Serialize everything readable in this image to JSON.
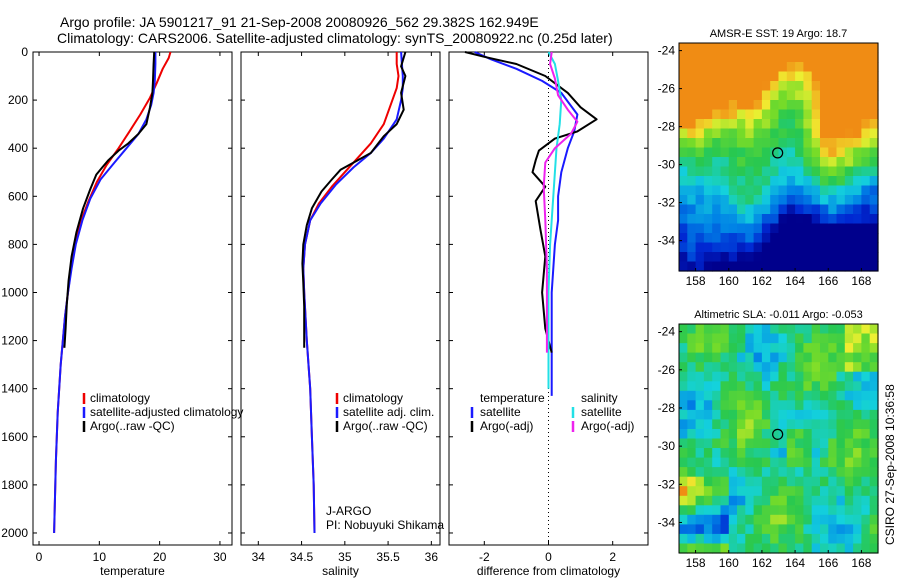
{
  "header": {
    "line1": "Argo profile: JA 5901217_91 21-Sep-2008 20080926_562 29.382S 162.949E",
    "line2": "Climatology: CARS2006. Satellite-adjusted climatology: synTS_20080922.nc (0.25d later)"
  },
  "side_label": "CSIRO 27-Sep-2008 10:36:58",
  "colors": {
    "climatology": "#ee0000",
    "satellite": "#1a1aff",
    "argo": "#000000",
    "sal_satellite": "#22e0e6",
    "sal_argo": "#ee22ee"
  },
  "chart_data": [
    {
      "id": "temperature",
      "type": "line",
      "xlabel": "temperature",
      "ylabel": "",
      "xlim": [
        -1,
        32
      ],
      "ylim": [
        2050,
        0
      ],
      "xticks": [
        0,
        10,
        20,
        30
      ],
      "yticks": [
        0,
        200,
        400,
        600,
        800,
        1000,
        1200,
        1400,
        1600,
        1800,
        2000
      ],
      "legend": [
        {
          "label": "climatology",
          "color": "#ee0000"
        },
        {
          "label": "satellite-adjusted climatology",
          "color": "#1a1aff"
        },
        {
          "label": "Argo(..raw -QC)",
          "color": "#000000"
        }
      ],
      "series": [
        {
          "name": "climatology",
          "color": "#ee0000",
          "x": [
            21.8,
            21.5,
            20.5,
            19.5,
            18.4,
            16.8,
            15.0,
            13.2,
            11.2,
            9.6,
            8.2,
            7.0,
            6.0,
            5.3,
            4.8,
            4.3,
            3.6,
            3.1,
            2.8,
            2.5
          ],
          "y": [
            0,
            25,
            70,
            130,
            190,
            260,
            330,
            400,
            470,
            540,
            620,
            700,
            800,
            900,
            1000,
            1100,
            1300,
            1500,
            1700,
            2000
          ]
        },
        {
          "name": "satellite-adjusted climatology",
          "color": "#1a1aff",
          "x": [
            19.3,
            19.3,
            19.2,
            19.0,
            18.6,
            17.8,
            16.5,
            14.5,
            12.5,
            10.2,
            8.5,
            7.2,
            6.1,
            5.4,
            4.8,
            4.3,
            3.6,
            3.1,
            2.8,
            2.5
          ],
          "y": [
            0,
            50,
            120,
            170,
            220,
            280,
            340,
            400,
            460,
            530,
            610,
            700,
            800,
            900,
            1000,
            1100,
            1300,
            1500,
            1700,
            2000
          ]
        },
        {
          "name": "Argo(..raw -QC)",
          "color": "#000000",
          "x": [
            19.1,
            19.0,
            18.9,
            18.8,
            18.4,
            17.8,
            16.5,
            14.8,
            13.2,
            11.5,
            10.5,
            9.5,
            8.5,
            7.3,
            6.2,
            5.4,
            4.9,
            4.6,
            4.4,
            4.2
          ],
          "y": [
            0,
            50,
            120,
            170,
            230,
            300,
            340,
            380,
            410,
            450,
            480,
            510,
            570,
            650,
            750,
            850,
            950,
            1050,
            1150,
            1230
          ]
        }
      ]
    },
    {
      "id": "salinity",
      "type": "line",
      "xlabel": "salinity",
      "ylabel": "",
      "xlim": [
        33.8,
        36.1
      ],
      "ylim": [
        2050,
        0
      ],
      "xticks": [
        34,
        34.5,
        35,
        35.5,
        36
      ],
      "xticklabels": [
        "34",
        "34.5",
        "35",
        "35.5",
        "36"
      ],
      "legend": [
        {
          "label": "climatology",
          "color": "#ee0000"
        },
        {
          "label": "satellite adj. clim.",
          "color": "#1a1aff"
        },
        {
          "label": "Argo(..raw -QC)",
          "color": "#000000"
        }
      ],
      "series": [
        {
          "name": "climatology",
          "color": "#ee0000",
          "x": [
            35.6,
            35.6,
            35.62,
            35.6,
            35.55,
            35.45,
            35.3,
            35.15,
            35.0,
            34.85,
            34.7,
            34.6,
            34.54,
            34.52,
            34.53,
            34.56,
            34.6,
            34.62,
            34.64,
            34.65
          ],
          "y": [
            0,
            50,
            100,
            150,
            200,
            300,
            380,
            440,
            500,
            560,
            630,
            700,
            800,
            900,
            1000,
            1200,
            1400,
            1600,
            1800,
            2000
          ]
        },
        {
          "name": "satellite adj. clim.",
          "color": "#1a1aff",
          "x": [
            35.65,
            35.66,
            35.67,
            35.67,
            35.65,
            35.6,
            35.45,
            35.3,
            35.1,
            34.9,
            34.72,
            34.6,
            34.54,
            34.52,
            34.53,
            34.56,
            34.6,
            34.62,
            34.64,
            34.65
          ],
          "y": [
            0,
            50,
            100,
            150,
            200,
            280,
            360,
            420,
            480,
            550,
            630,
            700,
            800,
            900,
            1000,
            1200,
            1400,
            1600,
            1800,
            2000
          ]
        },
        {
          "name": "Argo(..raw -QC)",
          "color": "#000000",
          "x": [
            35.7,
            35.65,
            35.7,
            35.65,
            35.68,
            35.6,
            35.45,
            35.3,
            35.1,
            34.95,
            34.85,
            34.73,
            34.62,
            34.56,
            34.52,
            34.51,
            34.52,
            34.53,
            34.53
          ],
          "y": [
            0,
            60,
            100,
            170,
            240,
            300,
            350,
            420,
            460,
            490,
            530,
            580,
            650,
            720,
            800,
            880,
            960,
            1060,
            1230
          ]
        }
      ]
    },
    {
      "id": "difference",
      "type": "line",
      "xlabel": "difference from climatology",
      "ylabel": "",
      "xlim": [
        -3.1,
        3.1
      ],
      "ylim": [
        2050,
        0
      ],
      "xticks": [
        -2,
        0,
        2
      ],
      "xticklabels": [
        "-2",
        "0",
        "2"
      ],
      "legend": [
        {
          "group": "temperature",
          "label": "satellite",
          "color": "#1a1aff"
        },
        {
          "group": "temperature",
          "label": "Argo(-adj)",
          "color": "#000000"
        },
        {
          "group": "salinity",
          "label": "satellite",
          "color": "#22e0e6"
        },
        {
          "group": "salinity",
          "label": "Argo(-adj)",
          "color": "#ee22ee"
        }
      ],
      "legend_headers": {
        "temperature": "temperature",
        "salinity": "salinity"
      },
      "series": [
        {
          "name": "temperature satellite",
          "color": "#1a1aff",
          "x": [
            -2.3,
            -1.8,
            -1.0,
            -0.2,
            0.4,
            0.9,
            0.8,
            0.6,
            0.4,
            0.3,
            0.3,
            0.2,
            0.15,
            0.1,
            0.1,
            0.1,
            0.1,
            0.1,
            0.1
          ],
          "y": [
            0,
            30,
            70,
            120,
            170,
            260,
            330,
            400,
            500,
            600,
            700,
            800,
            900,
            1000,
            1100,
            1200,
            1300,
            1400,
            1430
          ]
        },
        {
          "name": "temperature Argo(-adj)",
          "color": "#000000",
          "x": [
            -2.6,
            -2.0,
            -1.0,
            -0.1,
            0.6,
            1.0,
            1.5,
            0.9,
            0.2,
            -0.3,
            -0.4,
            -0.5,
            -0.1,
            -0.4,
            -0.25,
            -0.1,
            -0.2,
            -0.1,
            0.1
          ],
          "y": [
            0,
            20,
            50,
            100,
            170,
            230,
            280,
            330,
            360,
            410,
            450,
            500,
            560,
            620,
            740,
            850,
            1000,
            1150,
            1250
          ]
        },
        {
          "name": "salinity satellite",
          "color": "#22e0e6",
          "x": [
            0.0,
            0.2,
            0.3,
            0.4,
            0.35,
            0.25,
            0.2,
            0.15,
            0.1,
            0.05,
            0.0,
            0.0,
            0.0
          ],
          "y": [
            0,
            50,
            120,
            200,
            300,
            400,
            500,
            600,
            700,
            800,
            1000,
            1200,
            1400
          ]
        },
        {
          "name": "salinity Argo(-adj)",
          "color": "#ee22ee",
          "x": [
            0.1,
            0.05,
            0.2,
            0.3,
            0.6,
            0.9,
            0.7,
            0.2,
            -0.1,
            -0.15,
            -0.1,
            -0.05,
            -0.05,
            -0.05
          ],
          "y": [
            0,
            50,
            110,
            180,
            240,
            290,
            340,
            400,
            460,
            560,
            700,
            900,
            1100,
            1250
          ]
        }
      ]
    },
    {
      "id": "sst-map",
      "type": "heatmap",
      "title": "AMSR-E SST: 19 Argo: 18.7",
      "xlim": [
        157,
        169
      ],
      "ylim": [
        -35.6,
        -23.6
      ],
      "xticks": [
        158,
        160,
        162,
        164,
        166,
        168
      ],
      "yticks": [
        -24,
        -26,
        -28,
        -30,
        -32,
        -34
      ],
      "marker": {
        "lon": 162.949,
        "lat": -29.382
      }
    },
    {
      "id": "sla-map",
      "type": "heatmap",
      "title": "Altimetric SLA: -0.011 Argo: -0.053",
      "xlim": [
        157,
        169
      ],
      "ylim": [
        -35.6,
        -23.6
      ],
      "xticks": [
        158,
        160,
        162,
        164,
        166,
        168
      ],
      "yticks": [
        -24,
        -26,
        -28,
        -30,
        -32,
        -34
      ],
      "marker": {
        "lon": 162.949,
        "lat": -29.382
      }
    }
  ],
  "annotations": {
    "float_org": "J-ARGO",
    "pi": "PI: Nobuyuki Shikama"
  }
}
